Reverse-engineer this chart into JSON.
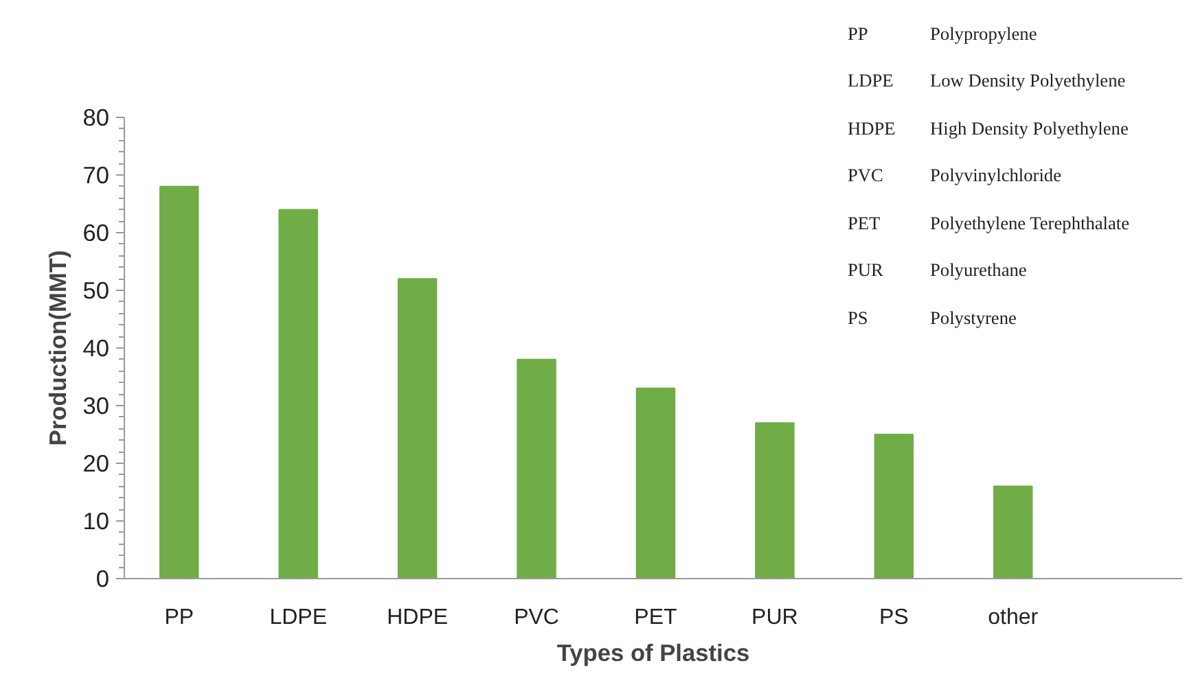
{
  "chart_data": {
    "type": "bar",
    "xlabel": "Types of Plastics",
    "ylabel": "Production(MMT)",
    "categories": [
      "PP",
      "LDPE",
      "HDPE",
      "PVC",
      "PET",
      "PUR",
      "PS",
      "other"
    ],
    "values": [
      68,
      64,
      52,
      38,
      33,
      27,
      25,
      16
    ],
    "color": "#70ad47",
    "ylim": [
      0,
      80
    ],
    "yticks": [
      0,
      10,
      20,
      30,
      40,
      50,
      60,
      70,
      80
    ],
    "grid": false,
    "annotations": [
      "PP Polypropylene",
      "LDPE Low Density Polyethylene",
      "HDPE High Density Polyethylene",
      "PVC Polyvinylchloride",
      "PET Polyethylene Terephthalate",
      "PUR Polyurethane",
      "PS Polystyrene"
    ]
  }
}
